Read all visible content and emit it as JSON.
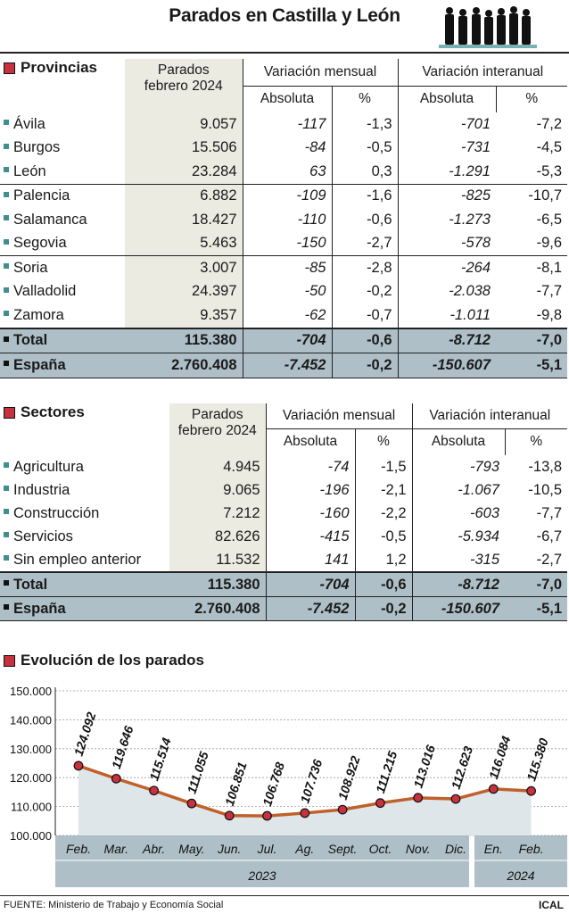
{
  "title": "Parados en Castilla y León",
  "provincias": {
    "heading": "Provincias",
    "col_parados": [
      "Parados",
      "febrero 2024"
    ],
    "col_var_mensual": "Variación mensual",
    "col_var_interanual": "Variación interanual",
    "col_absoluta": "Absoluta",
    "col_pct": "%",
    "rows": [
      {
        "name": "Ávila",
        "parados": "9.057",
        "mens_abs": "-117",
        "mens_pct": "-1,3",
        "inter_abs": "-701",
        "inter_pct": "-7,2"
      },
      {
        "name": "Burgos",
        "parados": "15.506",
        "mens_abs": "-84",
        "mens_pct": "-0,5",
        "inter_abs": "-731",
        "inter_pct": "-4,5"
      },
      {
        "name": "León",
        "parados": "23.284",
        "mens_abs": "63",
        "mens_pct": "0,3",
        "inter_abs": "-1.291",
        "inter_pct": "-5,3"
      },
      {
        "name": "Palencia",
        "parados": "6.882",
        "mens_abs": "-109",
        "mens_pct": "-1,6",
        "inter_abs": "-825",
        "inter_pct": "-10,7"
      },
      {
        "name": "Salamanca",
        "parados": "18.427",
        "mens_abs": "-110",
        "mens_pct": "-0,6",
        "inter_abs": "-1.273",
        "inter_pct": "-6,5"
      },
      {
        "name": "Segovia",
        "parados": "5.463",
        "mens_abs": "-150",
        "mens_pct": "-2,7",
        "inter_abs": "-578",
        "inter_pct": "-9,6"
      },
      {
        "name": "Soria",
        "parados": "3.007",
        "mens_abs": "-85",
        "mens_pct": "-2,8",
        "inter_abs": "-264",
        "inter_pct": "-8,1"
      },
      {
        "name": "Valladolid",
        "parados": "24.397",
        "mens_abs": "-50",
        "mens_pct": "-0,2",
        "inter_abs": "-2.038",
        "inter_pct": "-7,7"
      },
      {
        "name": "Zamora",
        "parados": "9.357",
        "mens_abs": "-62",
        "mens_pct": "-0,7",
        "inter_abs": "-1.011",
        "inter_pct": "-9,8"
      }
    ],
    "total": {
      "name": "Total",
      "parados": "115.380",
      "mens_abs": "-704",
      "mens_pct": "-0,6",
      "inter_abs": "-8.712",
      "inter_pct": "-7,0"
    },
    "espana": {
      "name": "España",
      "parados": "2.760.408",
      "mens_abs": "-7.452",
      "mens_pct": "-0,2",
      "inter_abs": "-150.607",
      "inter_pct": "-5,1"
    }
  },
  "sectores": {
    "heading": "Sectores",
    "col_parados": [
      "Parados",
      "febrero 2024"
    ],
    "col_var_mensual": "Variación mensual",
    "col_var_interanual": "Variación interanual",
    "col_absoluta": "Absoluta",
    "col_pct": "%",
    "rows": [
      {
        "name": "Agricultura",
        "parados": "4.945",
        "mens_abs": "-74",
        "mens_pct": "-1,5",
        "inter_abs": "-793",
        "inter_pct": "-13,8"
      },
      {
        "name": "Industria",
        "parados": "9.065",
        "mens_abs": "-196",
        "mens_pct": "-2,1",
        "inter_abs": "-1.067",
        "inter_pct": "-10,5"
      },
      {
        "name": "Construcción",
        "parados": "7.212",
        "mens_abs": "-160",
        "mens_pct": "-2,2",
        "inter_abs": "-603",
        "inter_pct": "-7,7"
      },
      {
        "name": "Servicios",
        "parados": "82.626",
        "mens_abs": "-415",
        "mens_pct": "-0,5",
        "inter_abs": "-5.934",
        "inter_pct": "-6,7"
      },
      {
        "name": "Sin empleo anterior",
        "parados": "11.532",
        "mens_abs": "141",
        "mens_pct": "1,2",
        "inter_abs": "-315",
        "inter_pct": "-2,7"
      }
    ],
    "total": {
      "name": "Total",
      "parados": "115.380",
      "mens_abs": "-704",
      "mens_pct": "-0,6",
      "inter_abs": "-8.712",
      "inter_pct": "-7,0"
    },
    "espana": {
      "name": "España",
      "parados": "2.760.408",
      "mens_abs": "-7.452",
      "mens_pct": "-0,2",
      "inter_abs": "-150.607",
      "inter_pct": "-5,1"
    }
  },
  "evolucion": {
    "heading": "Evolución de los parados"
  },
  "chart_data": {
    "type": "line",
    "x": [
      "Feb.",
      "Mar.",
      "Abr.",
      "May.",
      "Jun.",
      "Jul.",
      "Ag.",
      "Sept.",
      "Oct.",
      "Nov.",
      "Dic.",
      "En.",
      "Feb."
    ],
    "values": [
      124092,
      119646,
      115514,
      111055,
      106851,
      106768,
      107736,
      108922,
      111215,
      113016,
      112623,
      116084,
      115380
    ],
    "value_labels": [
      "124.092",
      "119.646",
      "115.514",
      "111.055",
      "106.851",
      "106.768",
      "107.736",
      "108.922",
      "111.215",
      "113.016",
      "112.623",
      "116.084",
      "115.380"
    ],
    "y_ticks": [
      100000,
      110000,
      120000,
      130000,
      140000,
      150000
    ],
    "y_tick_labels": [
      "100.000",
      "110.000",
      "120.000",
      "130.000",
      "140.000",
      "150.000"
    ],
    "ylim": [
      100000,
      150000
    ],
    "years": [
      {
        "label": "2023",
        "from": 0,
        "to": 10
      },
      {
        "label": "2024",
        "from": 11,
        "to": 12
      }
    ],
    "grid": true,
    "colors": {
      "line": "#c0602a",
      "marker": "#c6323f",
      "area": "#dfe6ea",
      "axis_band": "#aebfc7"
    }
  },
  "footer": {
    "source": "FUENTE: Ministerio de Trabajo y Economía Social",
    "credit": "ICAL"
  }
}
